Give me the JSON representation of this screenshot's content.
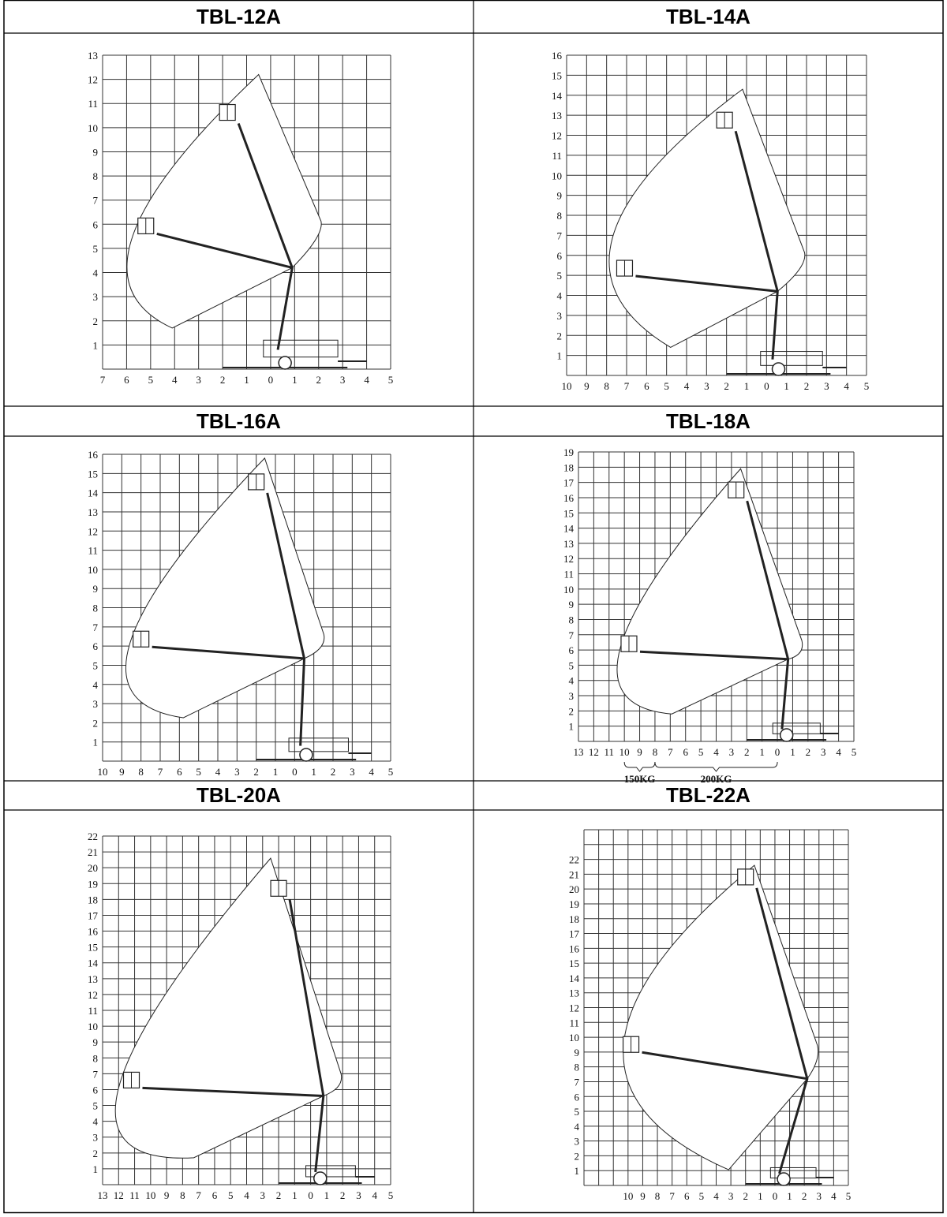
{
  "chart_data": [
    {
      "type": "diagram",
      "title": "TBL-12A",
      "xlim": [
        -7,
        5
      ],
      "ylim": [
        0,
        13
      ],
      "x_tick_labels": [
        "7",
        "6",
        "5",
        "4",
        "3",
        "2",
        "1",
        "0",
        "1",
        "2",
        "3",
        "4",
        "5"
      ],
      "x_tick_start": -7,
      "y_tick_labels": [
        "1",
        "2",
        "3",
        "4",
        "5",
        "6",
        "7",
        "8",
        "9",
        "10",
        "11",
        "12",
        "13"
      ],
      "envelope": {
        "bottom": [
          -4.1,
          1.7
        ],
        "left": [
          -5.75,
          5.5
        ],
        "top": [
          -0.5,
          12.2
        ],
        "right": [
          2.1,
          5.8
        ],
        "inner": [
          0.9,
          4.2
        ]
      },
      "platform_high": [
        -1.8,
        10.5
      ],
      "platform_out": [
        -5.2,
        5.8
      ],
      "load_ranges": []
    },
    {
      "type": "diagram",
      "title": "TBL-14A",
      "xlim": [
        -10,
        5
      ],
      "ylim": [
        0,
        16
      ],
      "x_tick_labels": [
        "10",
        "9",
        "8",
        "7",
        "6",
        "5",
        "4",
        "3",
        "2",
        "1",
        "0",
        "1",
        "2",
        "3",
        "4",
        "5"
      ],
      "x_tick_start": -10,
      "y_tick_labels": [
        "1",
        "2",
        "3",
        "4",
        "5",
        "6",
        "7",
        "8",
        "9",
        "10",
        "11",
        "12",
        "13",
        "14",
        "15",
        "16"
      ],
      "envelope": {
        "bottom": [
          -4.8,
          1.4
        ],
        "left": [
          -7.7,
          6.9
        ],
        "top": [
          -1.2,
          14.3
        ],
        "right": [
          1.9,
          5.75
        ],
        "inner": [
          0.55,
          4.2
        ]
      },
      "platform_high": [
        -2.1,
        12.6
      ],
      "platform_out": [
        -7.1,
        5.2
      ],
      "load_ranges": []
    },
    {
      "type": "diagram",
      "title": "TBL-16A",
      "xlim": [
        -10,
        5
      ],
      "ylim": [
        0,
        16
      ],
      "x_tick_labels": [
        "10",
        "9",
        "8",
        "7",
        "6",
        "5",
        "4",
        "3",
        "2",
        "1",
        "0",
        "1",
        "2",
        "3",
        "4",
        "5"
      ],
      "x_tick_start": -10,
      "y_tick_labels": [
        "1",
        "2",
        "3",
        "4",
        "5",
        "6",
        "7",
        "8",
        "9",
        "10",
        "11",
        "12",
        "13",
        "14",
        "15",
        "16"
      ],
      "envelope": {
        "bottom": [
          -5.8,
          2.26
        ],
        "left": [
          -8.56,
          6.2
        ],
        "top": [
          -1.56,
          15.8
        ],
        "right": [
          1.52,
          6.2
        ],
        "inner": [
          0.5,
          5.35
        ]
      },
      "platform_high": [
        -2.0,
        14.4
      ],
      "platform_out": [
        -8.0,
        6.2
      ],
      "load_ranges": []
    },
    {
      "type": "diagram",
      "title": "TBL-18A",
      "xlim": [
        -13,
        5
      ],
      "ylim": [
        0,
        19
      ],
      "x_tick_labels": [
        "13",
        "12",
        "11",
        "10",
        "9",
        "8",
        "7",
        "6",
        "5",
        "4",
        "3",
        "2",
        "1",
        "0",
        "1",
        "2",
        "3",
        "4",
        "5"
      ],
      "x_tick_start": -13,
      "y_tick_labels": [
        "1",
        "2",
        "3",
        "4",
        "5",
        "6",
        "7",
        "8",
        "9",
        "10",
        "11",
        "12",
        "13",
        "14",
        "15",
        "16",
        "17",
        "18",
        "19"
      ],
      "envelope": {
        "bottom": [
          -6.9,
          1.8
        ],
        "left": [
          -10.25,
          6.2
        ],
        "top": [
          -2.4,
          17.9
        ],
        "right": [
          1.6,
          6.1
        ],
        "inner": [
          0.7,
          5.4
        ]
      },
      "platform_high": [
        -2.7,
        16.3
      ],
      "platform_out": [
        -9.7,
        6.2
      ],
      "load_ranges": [
        {
          "label": "150KG",
          "from": -10,
          "to": -8
        },
        {
          "label": "200KG",
          "from": -8,
          "to": 0
        }
      ]
    },
    {
      "type": "diagram",
      "title": "TBL-20A",
      "xlim": [
        -13,
        5
      ],
      "ylim": [
        0,
        22
      ],
      "x_tick_labels": [
        "13",
        "12",
        "11",
        "10",
        "9",
        "8",
        "7",
        "6",
        "5",
        "4",
        "3",
        "2",
        "1",
        "0",
        "1",
        "2",
        "3",
        "4",
        "5"
      ],
      "x_tick_start": -13,
      "y_tick_labels": [
        "1",
        "2",
        "3",
        "4",
        "5",
        "6",
        "7",
        "8",
        "9",
        "10",
        "11",
        "12",
        "13",
        "14",
        "15",
        "16",
        "17",
        "18",
        "19",
        "20",
        "21",
        "22"
      ],
      "envelope": {
        "bottom": [
          -7.3,
          1.7
        ],
        "left": [
          -12,
          6.1
        ],
        "top": [
          -2.5,
          20.6
        ],
        "right": [
          1.9,
          6.5
        ],
        "inner": [
          0.8,
          5.6
        ]
      },
      "platform_high": [
        -2.0,
        18.5
      ],
      "platform_out": [
        -11.2,
        6.4
      ],
      "load_ranges": []
    },
    {
      "type": "diagram",
      "title": "TBL-22A",
      "xlim": [
        -13,
        5
      ],
      "ylim": [
        0,
        24
      ],
      "x_tick_labels": [
        "10",
        "9",
        "8",
        "7",
        "6",
        "5",
        "4",
        "3",
        "2",
        "1",
        "0",
        "1",
        "2",
        "3",
        "4",
        "5"
      ],
      "x_tick_start": -10,
      "y_tick_labels": [
        "1",
        "2",
        "3",
        "4",
        "5",
        "6",
        "7",
        "8",
        "9",
        "10",
        "11",
        "12",
        "13",
        "14",
        "15",
        "16",
        "17",
        "18",
        "19",
        "20",
        "21",
        "22"
      ],
      "envelope": {
        "bottom": [
          -3.15,
          1.06
        ],
        "left": [
          -10.3,
          9.5
        ],
        "top": [
          -1.4,
          21.6
        ],
        "right": [
          2.9,
          8.9
        ],
        "inner": [
          2.2,
          7.2
        ]
      },
      "platform_high": [
        -2.0,
        20.6
      ],
      "platform_out": [
        -9.8,
        9.3
      ],
      "load_ranges": []
    }
  ]
}
